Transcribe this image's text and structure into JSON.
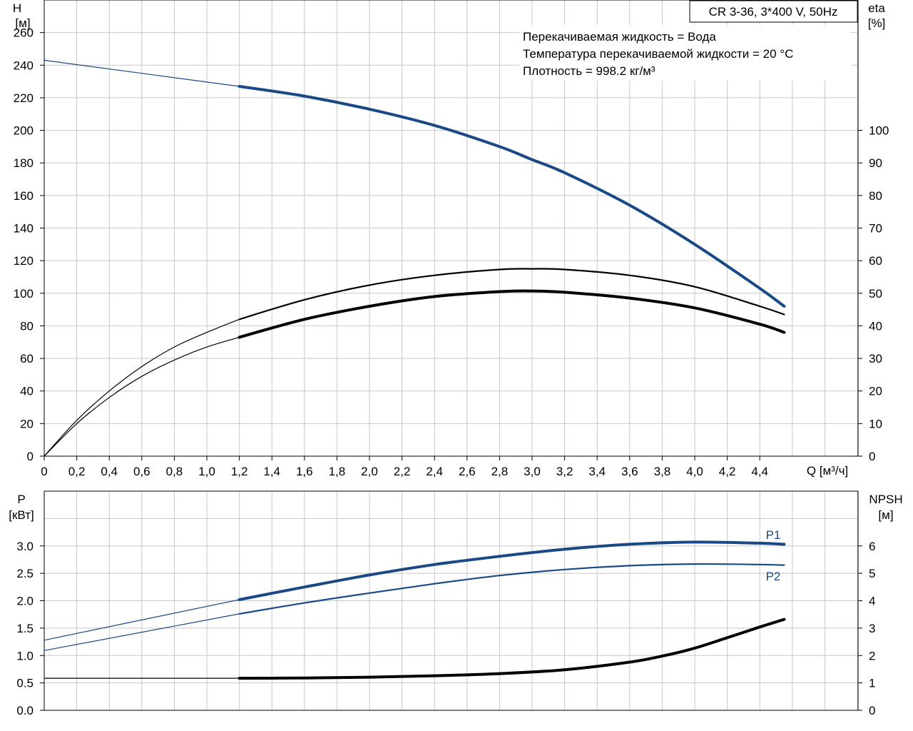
{
  "title": "CR 3-36, 3*400 V, 50Hz",
  "info_lines": [
    "Перекачиваемая жидкость = Вода",
    "Температура перекачиваемой жидкости = 20 °C",
    "Плотность = 998.2 кг/м³"
  ],
  "colors": {
    "blue": "#1a4a86",
    "black": "#000000",
    "grid": "#c8c8c8"
  },
  "chart_data": [
    {
      "type": "line",
      "xlabel": "Q [м³/ч]",
      "ylabel_left": [
        "H",
        "[м]"
      ],
      "ylabel_right": [
        "eta",
        "[%]"
      ],
      "xlim": [
        0,
        5.0
      ],
      "ylim_left": [
        0,
        280
      ],
      "ylim_right": [
        0,
        140
      ],
      "x_ticks": [
        "0",
        "0,2",
        "0,4",
        "0,6",
        "0,8",
        "1,0",
        "1,2",
        "1,4",
        "1,6",
        "1,8",
        "2,0",
        "2,2",
        "2,4",
        "2,6",
        "2,8",
        "3,0",
        "3,2",
        "3,4",
        "3,6",
        "3,8",
        "4,0",
        "4,2",
        "4,4"
      ],
      "y_ticks_left": [
        "0",
        "20",
        "40",
        "60",
        "80",
        "100",
        "120",
        "140",
        "160",
        "180",
        "200",
        "220",
        "240",
        "260"
      ],
      "y_ticks_right": [
        "0",
        "10",
        "20",
        "30",
        "40",
        "50",
        "60",
        "70",
        "80",
        "90",
        "100"
      ],
      "grid": true,
      "series": [
        {
          "axis": "left",
          "color": "blue",
          "thin_until": 1.2,
          "x": [
            0,
            1.2,
            1.6,
            2.0,
            2.4,
            2.8,
            3.0,
            3.2,
            3.6,
            4.0,
            4.4,
            4.55
          ],
          "y": [
            243,
            227,
            221,
            213,
            203,
            190,
            182,
            174,
            154,
            130,
            103,
            92
          ]
        },
        {
          "axis": "right",
          "color": "black",
          "thin_until": 1.2,
          "x": [
            0,
            0.2,
            0.4,
            0.6,
            0.8,
            1.0,
            1.2,
            1.6,
            2.0,
            2.4,
            2.8,
            3.0,
            3.2,
            3.6,
            4.0,
            4.4,
            4.55
          ],
          "y": [
            0,
            11,
            20,
            27.5,
            33.5,
            38,
            42,
            48,
            52.5,
            55.5,
            57.3,
            57.5,
            57.3,
            55.5,
            52,
            46,
            43.5
          ]
        },
        {
          "axis": "right",
          "color": "black",
          "thin_until": 1.2,
          "weight": "heavy",
          "x": [
            0,
            0.2,
            0.4,
            0.6,
            0.8,
            1.0,
            1.2,
            1.6,
            2.0,
            2.4,
            2.8,
            3.0,
            3.2,
            3.6,
            4.0,
            4.4,
            4.55
          ],
          "y": [
            0,
            10,
            18,
            24.5,
            29.5,
            33.5,
            36.5,
            42,
            46,
            49,
            50.5,
            50.7,
            50.3,
            48.5,
            45.5,
            40.5,
            38
          ]
        }
      ]
    },
    {
      "type": "line",
      "ylabel_left": [
        "P",
        "[кВт]"
      ],
      "ylabel_right": [
        "NPSH",
        "[м]"
      ],
      "xlim": [
        0,
        5.0
      ],
      "ylim_left": [
        0,
        4.0
      ],
      "ylim_right": [
        0,
        8
      ],
      "y_ticks_left": [
        "0.0",
        "0.5",
        "1.0",
        "1.5",
        "2.0",
        "2.5",
        "3.0"
      ],
      "y_ticks_right": [
        "0",
        "1",
        "2",
        "3",
        "4",
        "5",
        "6"
      ],
      "grid": true,
      "series": [
        {
          "name": "P1",
          "axis": "left",
          "color": "blue",
          "thin_until": 1.2,
          "weight": "heavy",
          "x": [
            0,
            1.2,
            1.6,
            2.0,
            2.4,
            2.8,
            3.2,
            3.6,
            4.0,
            4.4,
            4.55
          ],
          "y": [
            1.28,
            2.02,
            2.25,
            2.47,
            2.66,
            2.81,
            2.94,
            3.03,
            3.07,
            3.05,
            3.03
          ]
        },
        {
          "name": "P2",
          "axis": "left",
          "color": "blue",
          "thin_until": 1.2,
          "x": [
            0,
            1.2,
            1.6,
            2.0,
            2.4,
            2.8,
            3.2,
            3.6,
            4.0,
            4.4,
            4.55
          ],
          "y": [
            1.09,
            1.76,
            1.96,
            2.14,
            2.31,
            2.46,
            2.57,
            2.64,
            2.67,
            2.66,
            2.65
          ]
        },
        {
          "name": "NPSH",
          "axis": "right",
          "color": "black",
          "thin_until": 1.2,
          "weight": "heavy",
          "x": [
            0,
            1.2,
            1.6,
            2.0,
            2.4,
            2.8,
            3.2,
            3.6,
            3.8,
            4.0,
            4.2,
            4.4,
            4.55
          ],
          "y": [
            1.17,
            1.17,
            1.18,
            1.21,
            1.26,
            1.34,
            1.48,
            1.76,
            1.98,
            2.27,
            2.65,
            3.04,
            3.32
          ]
        }
      ]
    }
  ]
}
